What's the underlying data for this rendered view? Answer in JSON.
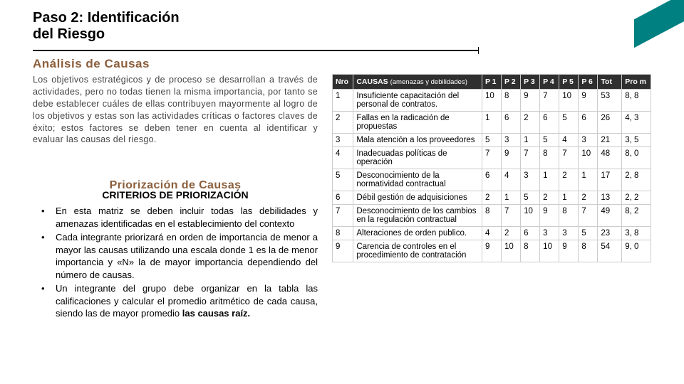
{
  "title_line1": "Paso 2: Identificación",
  "title_line2": "del Riesgo",
  "section1_heading": "Análisis de Causas",
  "paragraph": "Los objetivos estratégicos y de proceso se desarrollan a través de actividades, pero no todas tienen la misma importancia, por tanto se debe establecer cuáles de ellas contribuyen mayormente al logro de los objetivos y estas son las actividades críticas o factores claves de éxito; estos factores se deben tener en cuenta al identificar y evaluar las causas del riesgo.",
  "section2_heading": "Priorización de Causas",
  "subheading2": "CRITERIOS DE PRIORIZACIÓN",
  "bullets": [
    "En esta matriz se deben incluir todas las debilidades y amenazas identificadas en el establecimiento del contexto",
    "Cada integrante priorizará en orden de importancia de menor a mayor las causas utilizando una escala donde 1 es la de menor importancia y «N» la de mayor importancia dependiendo del número de causas.",
    "Un integrante del grupo debe organizar en la tabla las calificaciones y calcular el promedio aritmético de cada causa, siendo las de mayor promedio <b>las causas raíz.</b>"
  ],
  "table": {
    "header": {
      "nro": "Nro",
      "causas": "CAUSAS",
      "causas_sub": "(amenazas y debilidades)",
      "p": [
        "P 1",
        "P 2",
        "P 3",
        "P 4",
        "P 5",
        "P 6"
      ],
      "tot": "Tot",
      "prom": "Pro m"
    },
    "rows": [
      {
        "n": "1",
        "c": "Insuficiente capacitación del personal de contratos.",
        "p": [
          "10",
          "8",
          "9",
          "7",
          "10",
          "9"
        ],
        "t": "53",
        "m": "8, 8"
      },
      {
        "n": "2",
        "c": "Fallas en la radicación de propuestas",
        "p": [
          "1",
          "6",
          "2",
          "6",
          "5",
          "6"
        ],
        "t": "26",
        "m": "4, 3"
      },
      {
        "n": "3",
        "c": "Mala atención a los proveedores",
        "p": [
          "5",
          "3",
          "1",
          "5",
          "4",
          "3"
        ],
        "t": "21",
        "m": "3, 5"
      },
      {
        "n": "4",
        "c": "Inadecuadas políticas de operación",
        "p": [
          "7",
          "9",
          "7",
          "8",
          "7",
          "10"
        ],
        "t": "48",
        "m": "8, 0"
      },
      {
        "n": "5",
        "c": "Desconocimiento de la normatividad  contractual",
        "p": [
          "6",
          "4",
          "3",
          "1",
          "2",
          "1"
        ],
        "t": "17",
        "m": "2, 8"
      },
      {
        "n": "6",
        "c": "Débil gestión de adquisiciones",
        "p": [
          "2",
          "1",
          "5",
          "2",
          "1",
          "2"
        ],
        "t": "13",
        "m": "2, 2"
      },
      {
        "n": "7",
        "c": "Desconocimiento de los cambios en la regulación contractual",
        "p": [
          "8",
          "7",
          "10",
          "9",
          "8",
          "7"
        ],
        "t": "49",
        "m": "8, 2"
      },
      {
        "n": "8",
        "c": "Alteraciones de orden publico.",
        "p": [
          "4",
          "2",
          "6",
          "3",
          "3",
          "5"
        ],
        "t": "23",
        "m": "3, 8"
      },
      {
        "n": "9",
        "c": "Carencia de  controles en el procedimiento de contratación",
        "p": [
          "9",
          "10",
          "8",
          "10",
          "9",
          "8"
        ],
        "t": "54",
        "m": "9, 0"
      }
    ]
  }
}
